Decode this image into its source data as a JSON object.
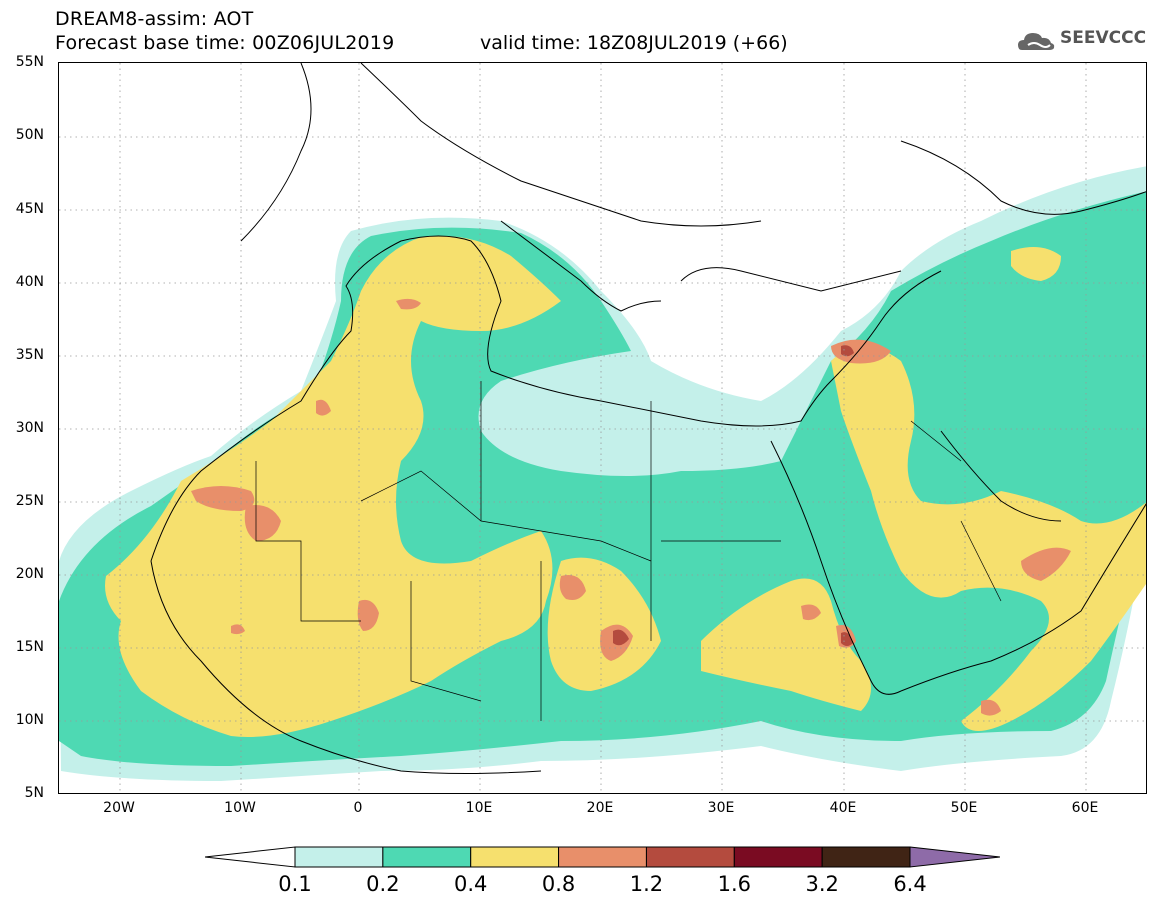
{
  "header": {
    "title_line1": "DREAM8-assim: AOT",
    "base_time": "Forecast base time: 00Z06JUL2019",
    "valid_time": "valid time: 18Z08JUL2019 (+66)",
    "logo_text": "SEEVCCC"
  },
  "axes": {
    "lat_labels": [
      "55N",
      "50N",
      "45N",
      "40N",
      "35N",
      "30N",
      "25N",
      "20N",
      "15N",
      "10N",
      "5N"
    ],
    "lon_labels": [
      "20W",
      "10W",
      "0",
      "10E",
      "20E",
      "30E",
      "40E",
      "50E",
      "60E"
    ],
    "lat_range": [
      5,
      55
    ],
    "lon_range": [
      -25,
      65
    ],
    "grid": "dotted"
  },
  "colorbar": {
    "levels": [
      "0.1",
      "0.2",
      "0.4",
      "0.8",
      "1.2",
      "1.6",
      "3.2",
      "6.4"
    ],
    "colors": [
      "#c4f0ea",
      "#4ed9b3",
      "#f6e06e",
      "#e88f6a",
      "#b44b3e",
      "#7a0b22",
      "#402415"
    ],
    "under_color": "#ffffff",
    "over_color": "#8e6ba8"
  }
}
